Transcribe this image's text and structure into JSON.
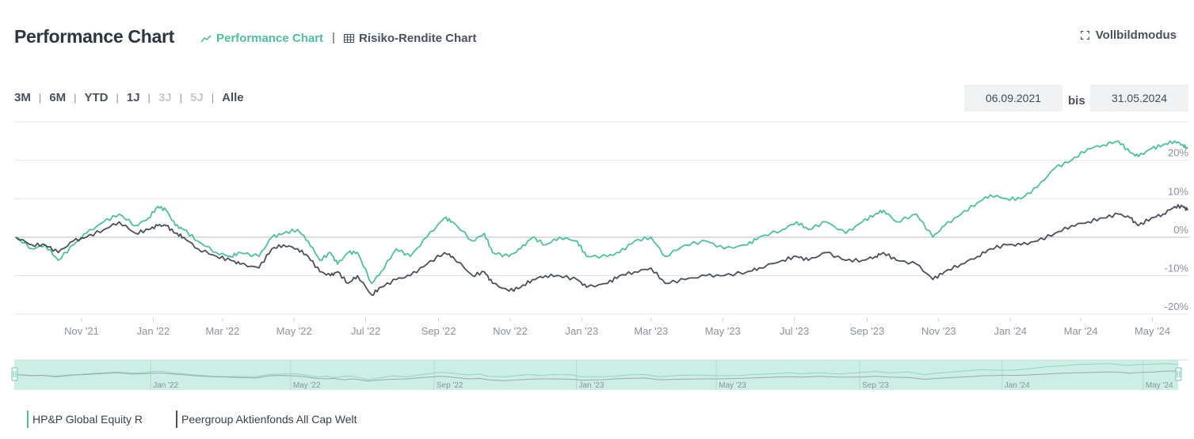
{
  "header": {
    "title": "Performance Chart",
    "tab_performance": "Performance Chart",
    "tab_separator": "|",
    "tab_risk": "Risiko-Rendite Chart",
    "fullscreen": "Vollbildmodus"
  },
  "ranges": [
    {
      "label": "3M",
      "enabled": true
    },
    {
      "label": "6M",
      "enabled": true
    },
    {
      "label": "YTD",
      "enabled": true
    },
    {
      "label": "1J",
      "enabled": true
    },
    {
      "label": "3J",
      "enabled": false
    },
    {
      "label": "5J",
      "enabled": false
    },
    {
      "label": "Alle",
      "enabled": true
    }
  ],
  "date_range": {
    "from": "06.09.2021",
    "separator": "bis",
    "to": "31.05.2024"
  },
  "colors": {
    "fund": "#4fbf9f",
    "peer": "#4a4f5c",
    "navigator_fill": "#cdeee4",
    "grid": "#e3e5e8",
    "axis_label": "#8c919a"
  },
  "icons": {
    "performance_tab": "line-chart-icon",
    "risk_tab": "grid-icon",
    "fullscreen": "expand-icon"
  },
  "legend": [
    {
      "name": "HP&P Global Equity R",
      "color": "#4fbf9f"
    },
    {
      "name": "Peergroup Aktienfonds All Cap Welt",
      "color": "#4a4f5c"
    }
  ],
  "chart_data": {
    "type": "line",
    "x_type": "date",
    "x_range": [
      "2021-09-06",
      "2024-05-31"
    ],
    "y_unit": "%",
    "ylim": [
      -21,
      30
    ],
    "y_ticks": [
      -20,
      -10,
      0,
      10,
      20
    ],
    "y_tick_labels": [
      "-20%",
      "-10%",
      "0%",
      "10%",
      "20%"
    ],
    "x_tick_labels": [
      {
        "label": "Nov '21",
        "date": "2021-11-01"
      },
      {
        "label": "Jan '22",
        "date": "2022-01-01"
      },
      {
        "label": "Mar '22",
        "date": "2022-03-01"
      },
      {
        "label": "May '22",
        "date": "2022-05-01"
      },
      {
        "label": "Jul '22",
        "date": "2022-07-01"
      },
      {
        "label": "Sep '22",
        "date": "2022-09-01"
      },
      {
        "label": "Nov '22",
        "date": "2022-11-01"
      },
      {
        "label": "Jan '23",
        "date": "2023-01-01"
      },
      {
        "label": "Mar '23",
        "date": "2023-03-01"
      },
      {
        "label": "May '23",
        "date": "2023-05-01"
      },
      {
        "label": "Jul '23",
        "date": "2023-07-01"
      },
      {
        "label": "Sep '23",
        "date": "2023-09-01"
      },
      {
        "label": "Nov '23",
        "date": "2023-11-01"
      },
      {
        "label": "Jan '24",
        "date": "2024-01-01"
      },
      {
        "label": "Mar '24",
        "date": "2024-03-01"
      },
      {
        "label": "May '24",
        "date": "2024-05-01"
      }
    ],
    "navigator_labels": [
      "Jan '22",
      "May '22",
      "Sep '22",
      "Jan '23",
      "May '23",
      "Sep '23",
      "Jan '24",
      "May '24"
    ],
    "grid": true,
    "legend_position": "bottom-left",
    "series": [
      {
        "name": "HP&P Global Equity R",
        "color": "#4fbf9f",
        "points": [
          [
            "2021-09-06",
            0
          ],
          [
            "2021-09-20",
            -3
          ],
          [
            "2021-10-01",
            -2
          ],
          [
            "2021-10-12",
            -6
          ],
          [
            "2021-10-25",
            -2
          ],
          [
            "2021-11-05",
            1
          ],
          [
            "2021-11-20",
            4
          ],
          [
            "2021-12-03",
            6
          ],
          [
            "2021-12-17",
            3
          ],
          [
            "2021-12-28",
            5
          ],
          [
            "2022-01-05",
            8
          ],
          [
            "2022-01-12",
            7
          ],
          [
            "2022-01-20",
            3
          ],
          [
            "2022-01-27",
            2
          ],
          [
            "2022-02-08",
            -1
          ],
          [
            "2022-02-24",
            -4
          ],
          [
            "2022-03-08",
            -5
          ],
          [
            "2022-03-16",
            -4
          ],
          [
            "2022-04-01",
            -5
          ],
          [
            "2022-04-12",
            0
          ],
          [
            "2022-04-22",
            1
          ],
          [
            "2022-05-04",
            2
          ],
          [
            "2022-05-13",
            -1
          ],
          [
            "2022-05-23",
            -6
          ],
          [
            "2022-06-01",
            -4
          ],
          [
            "2022-06-07",
            -7
          ],
          [
            "2022-06-16",
            -4
          ],
          [
            "2022-06-24",
            -4
          ],
          [
            "2022-07-06",
            -12
          ],
          [
            "2022-07-14",
            -9
          ],
          [
            "2022-07-27",
            -3
          ],
          [
            "2022-08-08",
            -5
          ],
          [
            "2022-08-22",
            0
          ],
          [
            "2022-09-06",
            5
          ],
          [
            "2022-09-13",
            4
          ],
          [
            "2022-09-30",
            -1
          ],
          [
            "2022-10-10",
            1
          ],
          [
            "2022-10-17",
            -4
          ],
          [
            "2022-10-31",
            -5
          ],
          [
            "2022-11-10",
            -3
          ],
          [
            "2022-11-20",
            0
          ],
          [
            "2022-12-01",
            -2
          ],
          [
            "2022-12-13",
            0
          ],
          [
            "2022-12-28",
            -1
          ],
          [
            "2023-01-05",
            -5
          ],
          [
            "2023-01-23",
            -5
          ],
          [
            "2023-02-02",
            -4
          ],
          [
            "2023-02-15",
            -1
          ],
          [
            "2023-03-01",
            0
          ],
          [
            "2023-03-13",
            -5
          ],
          [
            "2023-03-30",
            -2
          ],
          [
            "2023-04-17",
            -1
          ],
          [
            "2023-05-02",
            -3
          ],
          [
            "2023-05-22",
            -2
          ],
          [
            "2023-06-01",
            0
          ],
          [
            "2023-06-21",
            2
          ],
          [
            "2023-07-03",
            4
          ],
          [
            "2023-07-13",
            2
          ],
          [
            "2023-07-28",
            4
          ],
          [
            "2023-08-14",
            1
          ],
          [
            "2023-08-28",
            4
          ],
          [
            "2023-09-08",
            6
          ],
          [
            "2023-09-15",
            7
          ],
          [
            "2023-09-26",
            4
          ],
          [
            "2023-10-13",
            6
          ],
          [
            "2023-10-27",
            0
          ],
          [
            "2023-11-06",
            3
          ],
          [
            "2023-11-20",
            6
          ],
          [
            "2023-12-04",
            9
          ],
          [
            "2023-12-15",
            11
          ],
          [
            "2023-12-29",
            10
          ],
          [
            "2024-01-10",
            10
          ],
          [
            "2024-01-24",
            13
          ],
          [
            "2024-02-08",
            18
          ],
          [
            "2024-02-22",
            20
          ],
          [
            "2024-03-07",
            23
          ],
          [
            "2024-03-20",
            24
          ],
          [
            "2024-04-02",
            25
          ],
          [
            "2024-04-12",
            22
          ],
          [
            "2024-04-19",
            21
          ],
          [
            "2024-04-30",
            23
          ],
          [
            "2024-05-10",
            24
          ],
          [
            "2024-05-20",
            25
          ],
          [
            "2024-05-27",
            24
          ],
          [
            "2024-05-31",
            23
          ]
        ]
      },
      {
        "name": "Peergroup Aktienfonds All Cap Welt",
        "color": "#4a4f5c",
        "points": [
          [
            "2021-09-06",
            0
          ],
          [
            "2021-09-20",
            -2
          ],
          [
            "2021-10-01",
            -2
          ],
          [
            "2021-10-12",
            -4
          ],
          [
            "2021-10-25",
            -1
          ],
          [
            "2021-11-05",
            0
          ],
          [
            "2021-11-20",
            2
          ],
          [
            "2021-12-03",
            4
          ],
          [
            "2021-12-17",
            1
          ],
          [
            "2021-12-28",
            2
          ],
          [
            "2022-01-05",
            3
          ],
          [
            "2022-01-12",
            3
          ],
          [
            "2022-01-20",
            1
          ],
          [
            "2022-01-27",
            0
          ],
          [
            "2022-02-08",
            -3
          ],
          [
            "2022-02-24",
            -5
          ],
          [
            "2022-03-08",
            -6
          ],
          [
            "2022-03-16",
            -7
          ],
          [
            "2022-04-01",
            -8
          ],
          [
            "2022-04-12",
            -3
          ],
          [
            "2022-04-22",
            -2
          ],
          [
            "2022-05-04",
            -3
          ],
          [
            "2022-05-13",
            -5
          ],
          [
            "2022-05-23",
            -9
          ],
          [
            "2022-06-01",
            -10
          ],
          [
            "2022-06-07",
            -9
          ],
          [
            "2022-06-16",
            -12
          ],
          [
            "2022-06-24",
            -10
          ],
          [
            "2022-07-06",
            -15
          ],
          [
            "2022-07-14",
            -13
          ],
          [
            "2022-07-27",
            -11
          ],
          [
            "2022-08-08",
            -10
          ],
          [
            "2022-08-22",
            -7
          ],
          [
            "2022-09-06",
            -4
          ],
          [
            "2022-09-13",
            -5
          ],
          [
            "2022-09-30",
            -10
          ],
          [
            "2022-10-10",
            -9
          ],
          [
            "2022-10-17",
            -12
          ],
          [
            "2022-10-31",
            -14
          ],
          [
            "2022-11-10",
            -13
          ],
          [
            "2022-11-20",
            -11
          ],
          [
            "2022-12-01",
            -10
          ],
          [
            "2022-12-13",
            -10
          ],
          [
            "2022-12-28",
            -11
          ],
          [
            "2023-01-05",
            -13
          ],
          [
            "2023-01-23",
            -12
          ],
          [
            "2023-02-02",
            -10
          ],
          [
            "2023-02-15",
            -9
          ],
          [
            "2023-03-01",
            -8
          ],
          [
            "2023-03-13",
            -12
          ],
          [
            "2023-03-30",
            -11
          ],
          [
            "2023-04-17",
            -10
          ],
          [
            "2023-05-02",
            -10
          ],
          [
            "2023-05-22",
            -9
          ],
          [
            "2023-06-01",
            -8
          ],
          [
            "2023-06-21",
            -6
          ],
          [
            "2023-07-03",
            -5
          ],
          [
            "2023-07-13",
            -6
          ],
          [
            "2023-07-28",
            -4
          ],
          [
            "2023-08-14",
            -6
          ],
          [
            "2023-08-28",
            -6
          ],
          [
            "2023-09-08",
            -5
          ],
          [
            "2023-09-15",
            -4
          ],
          [
            "2023-09-26",
            -6
          ],
          [
            "2023-10-13",
            -7
          ],
          [
            "2023-10-27",
            -11
          ],
          [
            "2023-11-06",
            -9
          ],
          [
            "2023-11-20",
            -7
          ],
          [
            "2023-12-04",
            -5
          ],
          [
            "2023-12-15",
            -3
          ],
          [
            "2023-12-29",
            -2
          ],
          [
            "2024-01-10",
            -2
          ],
          [
            "2024-01-24",
            -1
          ],
          [
            "2024-02-08",
            1
          ],
          [
            "2024-02-22",
            3
          ],
          [
            "2024-03-07",
            4
          ],
          [
            "2024-03-20",
            5
          ],
          [
            "2024-04-02",
            6
          ],
          [
            "2024-04-12",
            5
          ],
          [
            "2024-04-19",
            3
          ],
          [
            "2024-04-30",
            5
          ],
          [
            "2024-05-10",
            6
          ],
          [
            "2024-05-20",
            8
          ],
          [
            "2024-05-27",
            8
          ],
          [
            "2024-05-31",
            7
          ]
        ]
      }
    ]
  }
}
